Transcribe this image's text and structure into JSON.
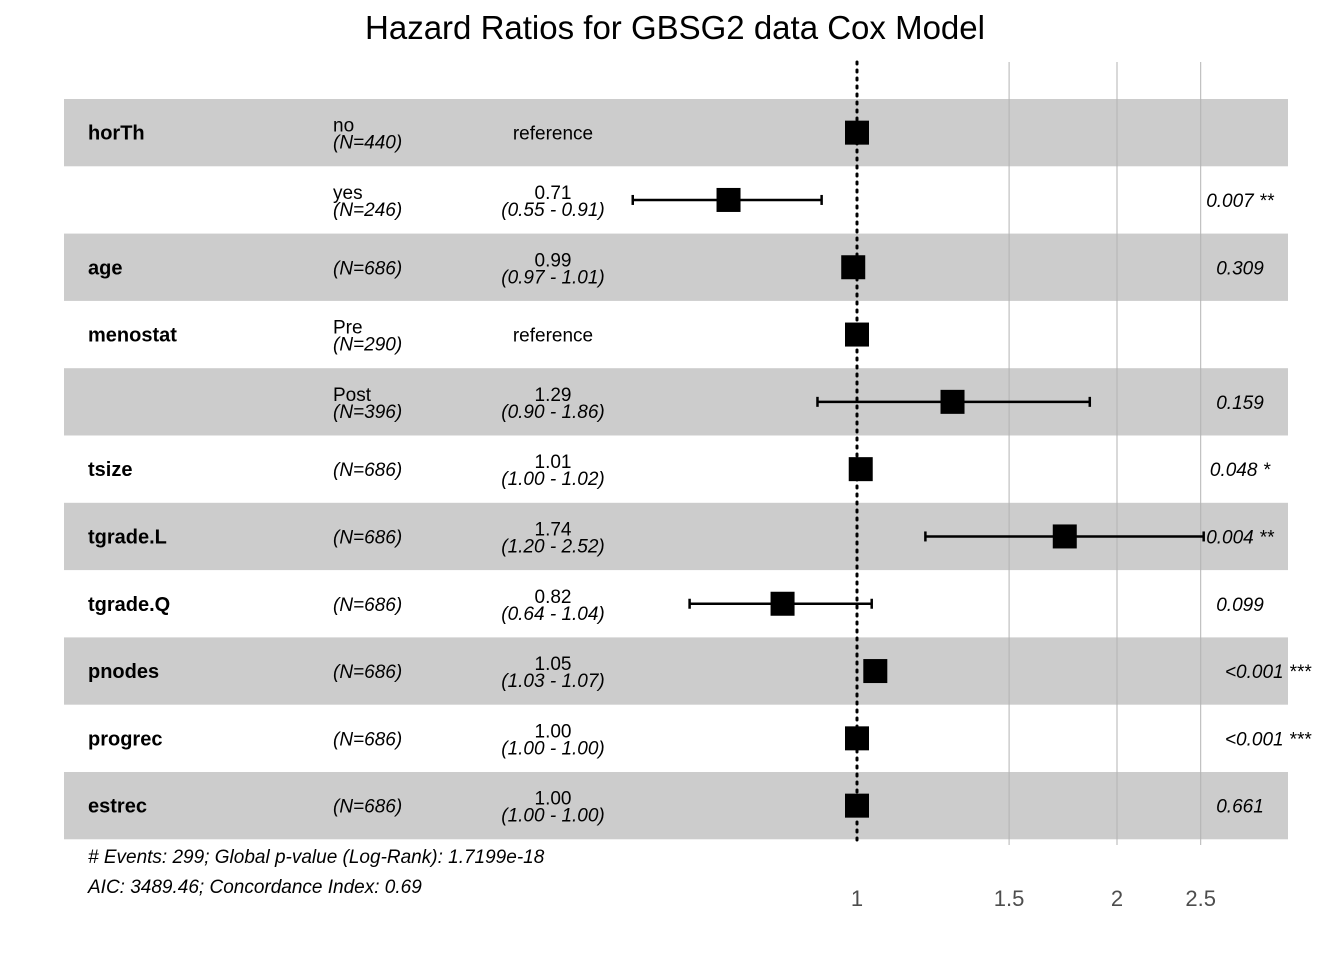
{
  "chart_data": {
    "type": "forest",
    "title": "Hazard Ratios for GBSG2 data Cox Model",
    "x_scale": "log",
    "xlim": [
      0.5,
      2.9
    ],
    "x_ticks": [
      1,
      1.5,
      2,
      2.5
    ],
    "x_tick_labels": [
      "1",
      "1.5",
      "2",
      "2.5"
    ],
    "reference_line": 1,
    "grid": true,
    "rows": [
      {
        "var": "horTh",
        "level": "no",
        "n": "(N=440)",
        "hr_text": "reference",
        "ci_text": "",
        "p": "",
        "hr": 1,
        "lo": null,
        "hi": null
      },
      {
        "var": "",
        "level": "yes",
        "n": "(N=246)",
        "hr_text": "0.71",
        "ci_text": "(0.55 - 0.91)",
        "p": "0.007 **",
        "hr": 0.71,
        "lo": 0.55,
        "hi": 0.91
      },
      {
        "var": "age",
        "level": "",
        "n": "(N=686)",
        "hr_text": "0.99",
        "ci_text": "(0.97 - 1.01)",
        "p": "0.309",
        "hr": 0.99,
        "lo": 0.97,
        "hi": 1.01
      },
      {
        "var": "menostat",
        "level": "Pre",
        "n": "(N=290)",
        "hr_text": "reference",
        "ci_text": "",
        "p": "",
        "hr": 1,
        "lo": null,
        "hi": null
      },
      {
        "var": "",
        "level": "Post",
        "n": "(N=396)",
        "hr_text": "1.29",
        "ci_text": "(0.90 - 1.86)",
        "p": "0.159",
        "hr": 1.29,
        "lo": 0.9,
        "hi": 1.86
      },
      {
        "var": "tsize",
        "level": "",
        "n": "(N=686)",
        "hr_text": "1.01",
        "ci_text": "(1.00 - 1.02)",
        "p": "0.048 *",
        "hr": 1.01,
        "lo": 1.0,
        "hi": 1.02
      },
      {
        "var": "tgrade.L",
        "level": "",
        "n": "(N=686)",
        "hr_text": "1.74",
        "ci_text": "(1.20 - 2.52)",
        "p": "0.004 **",
        "hr": 1.74,
        "lo": 1.2,
        "hi": 2.52
      },
      {
        "var": "tgrade.Q",
        "level": "",
        "n": "(N=686)",
        "hr_text": "0.82",
        "ci_text": "(0.64 - 1.04)",
        "p": "0.099",
        "hr": 0.82,
        "lo": 0.64,
        "hi": 1.04
      },
      {
        "var": "pnodes",
        "level": "",
        "n": "(N=686)",
        "hr_text": "1.05",
        "ci_text": "(1.03 - 1.07)",
        "p": "<0.001 ***",
        "hr": 1.05,
        "lo": 1.03,
        "hi": 1.07
      },
      {
        "var": "progrec",
        "level": "",
        "n": "(N=686)",
        "hr_text": "1.00",
        "ci_text": "(1.00 - 1.00)",
        "p": "<0.001 ***",
        "hr": 1.0,
        "lo": 1.0,
        "hi": 1.0
      },
      {
        "var": "estrec",
        "level": "",
        "n": "(N=686)",
        "hr_text": "1.00",
        "ci_text": "(1.00 - 1.00)",
        "p": "0.661",
        "hr": 1.0,
        "lo": 1.0,
        "hi": 1.0
      }
    ],
    "footnote": [
      "# Events: 299; Global p-value (Log-Rank): 1.7199e-18",
      "AIC: 3489.46; Concordance Index: 0.69"
    ],
    "colors": {
      "band": "#cccccc",
      "point": "#000000",
      "gridline": "#b3b3b3",
      "tick_text": "#4d4d4d"
    }
  }
}
